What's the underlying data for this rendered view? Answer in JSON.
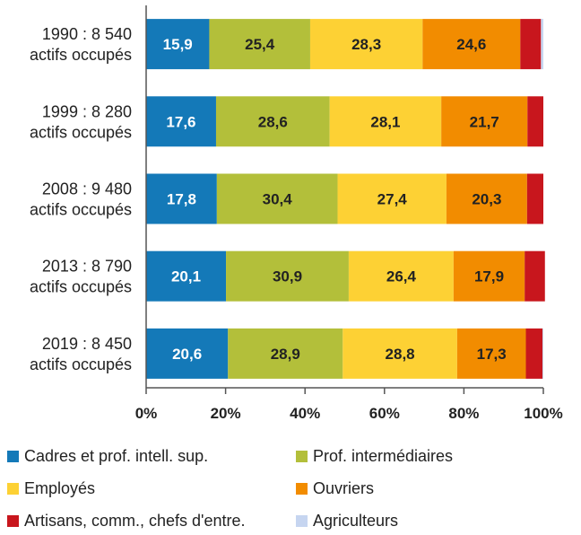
{
  "chart_data": {
    "type": "bar",
    "orientation": "horizontal",
    "stacked": true,
    "categories": [
      [
        "1990 : 8 540",
        "actifs occupés"
      ],
      [
        "1999 : 8 280",
        "actifs occupés"
      ],
      [
        "2008 : 9 480",
        "actifs occupés"
      ],
      [
        "2013 : 8 790",
        "actifs occupés"
      ],
      [
        "2019 : 8 450",
        "actifs occupés"
      ]
    ],
    "series": [
      {
        "name": "Cadres et prof. intell. sup.",
        "values": [
          15.9,
          17.6,
          17.8,
          20.1,
          20.6
        ],
        "labels": [
          "15,9",
          "17,6",
          "17,8",
          "20,1",
          "20,6"
        ],
        "color": "#1479b8",
        "label_color": "#ffffff"
      },
      {
        "name": "Prof. intermédiaires",
        "values": [
          25.4,
          28.6,
          30.4,
          30.9,
          28.9
        ],
        "labels": [
          "25,4",
          "28,6",
          "30,4",
          "30,9",
          "28,9"
        ],
        "color": "#b3bf3a",
        "label_color": "#222222"
      },
      {
        "name": "Employés",
        "values": [
          28.3,
          28.1,
          27.4,
          26.4,
          28.8
        ],
        "labels": [
          "28,3",
          "28,1",
          "27,4",
          "26,4",
          "28,8"
        ],
        "color": "#fdd134",
        "label_color": "#222222"
      },
      {
        "name": "Ouvriers",
        "values": [
          24.6,
          21.7,
          20.3,
          17.9,
          17.3
        ],
        "labels": [
          "24,6",
          "21,7",
          "20,3",
          "17,9",
          "17,3"
        ],
        "color": "#f28c00",
        "label_color": "#222222"
      },
      {
        "name": "Artisans, comm., chefs d'entre.",
        "values": [
          5.2,
          4.0,
          4.1,
          5.1,
          4.2
        ],
        "labels": [
          null,
          null,
          null,
          null,
          null
        ],
        "color": "#c8161d",
        "label_color": "#ffffff"
      },
      {
        "name": "Agriculteurs",
        "values": [
          0.6,
          0.0,
          0.0,
          0.0,
          0.2
        ],
        "labels": [
          null,
          null,
          null,
          null,
          null
        ],
        "color": "#c6d5f0",
        "label_color": "#222222"
      }
    ],
    "xlim": [
      0,
      100
    ],
    "xticks": [
      0,
      20,
      40,
      60,
      80,
      100
    ],
    "xtick_labels": [
      "0%",
      "20%",
      "40%",
      "60%",
      "80%",
      "100%"
    ],
    "grid": false,
    "legend_position": "bottom",
    "title": "",
    "xlabel": "",
    "ylabel": ""
  }
}
